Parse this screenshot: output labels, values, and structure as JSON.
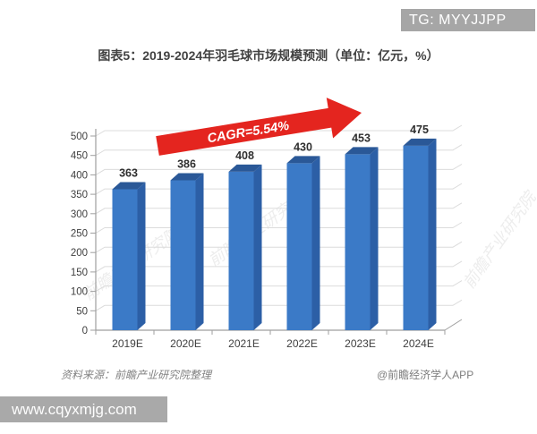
{
  "overlay": {
    "tg_badge": "TG: MYYJJPP",
    "url_watermark": "www.cqyxmjg.com"
  },
  "header": {
    "title": "图表5：2019-2024年羽毛球市场规模预测（单位：亿元，%）"
  },
  "footer": {
    "source": "资料来源：前瞻产业研究院整理",
    "credit": "@前瞻经济学人APP"
  },
  "chart_data": {
    "type": "bar",
    "style": "3d-column",
    "title": "图表5：2019-2024年羽毛球市场规模预测（单位：亿元，%）",
    "categories": [
      "2019E",
      "2020E",
      "2021E",
      "2022E",
      "2023E",
      "2024E"
    ],
    "values": [
      363,
      386,
      408,
      430,
      453,
      475
    ],
    "unit": "亿元",
    "ylim": [
      0,
      500
    ],
    "ytick_step": 50,
    "grid": true,
    "legend": false,
    "annotation": {
      "label": "CAGR=5.54%",
      "arrow_color": "#e4251f",
      "text_color": "#ffffff"
    },
    "colors": {
      "bar_front": "#3b7ac7",
      "bar_side": "#2c5fa6",
      "bar_top": "#2a5897",
      "gridline": "#dcdcdc",
      "axis": "#9f9f9f",
      "tick_label": "#404040",
      "value_label": "#2f2f2f"
    },
    "background_watermark": "前瞻产业研究院"
  }
}
